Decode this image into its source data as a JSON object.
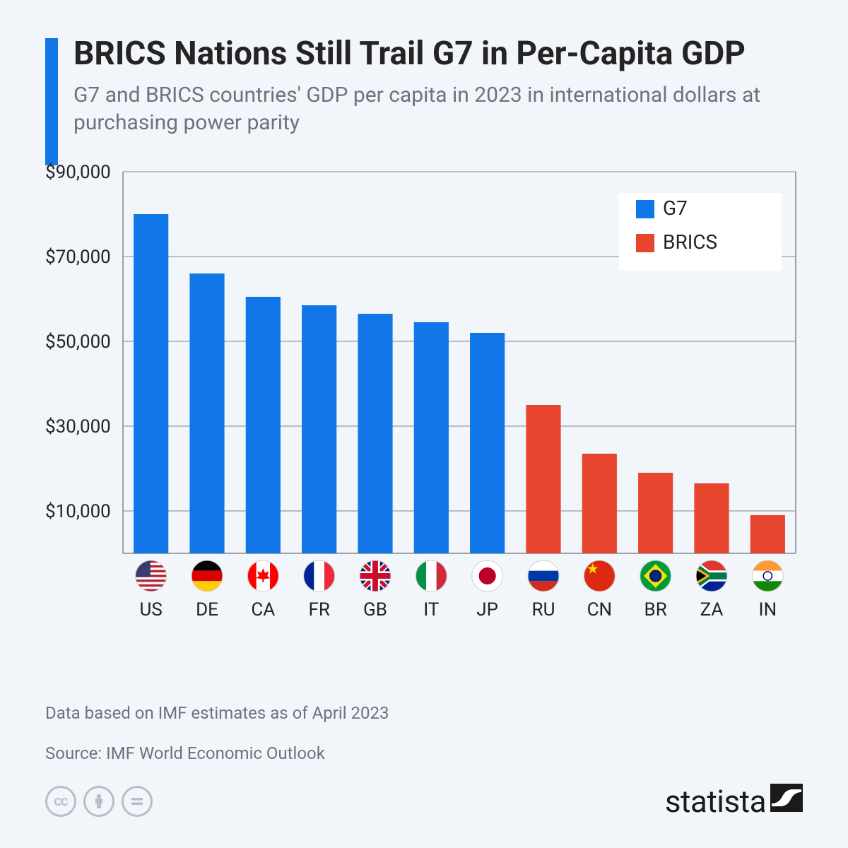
{
  "header": {
    "title": "BRICS Nations Still Trail G7 in Per-Capita GDP",
    "subtitle": "G7 and BRICS countries' GDP per capita in 2023 in international dollars at purchasing power parity",
    "bar_color": "#1176e8"
  },
  "chart": {
    "type": "bar",
    "ylim": [
      0,
      90000
    ],
    "ytick_step": 20000,
    "ytick_labels": [
      "$10,000",
      "$30,000",
      "$50,000",
      "$70,000",
      "$90,000"
    ],
    "ytick_values": [
      10000,
      30000,
      50000,
      70000,
      90000
    ],
    "grid_color": "#7f8896",
    "axis_color": "#7f8896",
    "background_color": "#f2f5f9",
    "bar_width": 0.62,
    "countries": [
      {
        "code": "US",
        "value": 80000,
        "group": "G7",
        "flag": "us"
      },
      {
        "code": "DE",
        "value": 66000,
        "group": "G7",
        "flag": "de"
      },
      {
        "code": "CA",
        "value": 60500,
        "group": "G7",
        "flag": "ca"
      },
      {
        "code": "FR",
        "value": 58500,
        "group": "G7",
        "flag": "fr"
      },
      {
        "code": "GB",
        "value": 56500,
        "group": "G7",
        "flag": "gb"
      },
      {
        "code": "IT",
        "value": 54500,
        "group": "G7",
        "flag": "it"
      },
      {
        "code": "JP",
        "value": 52000,
        "group": "G7",
        "flag": "jp"
      },
      {
        "code": "RU",
        "value": 35000,
        "group": "BRICS",
        "flag": "ru"
      },
      {
        "code": "CN",
        "value": 23500,
        "group": "BRICS",
        "flag": "cn"
      },
      {
        "code": "BR",
        "value": 19000,
        "group": "BRICS",
        "flag": "br"
      },
      {
        "code": "ZA",
        "value": 16500,
        "group": "BRICS",
        "flag": "za"
      },
      {
        "code": "IN",
        "value": 9000,
        "group": "BRICS",
        "flag": "in"
      }
    ],
    "groups": {
      "G7": {
        "label": "G7",
        "color": "#1176e8"
      },
      "BRICS": {
        "label": "BRICS",
        "color": "#e8452f"
      }
    },
    "legend": {
      "position": "top-right",
      "background": "#ffffff"
    }
  },
  "footer": {
    "note": "Data based on IMF estimates as of April 2023",
    "source": "Source: IMF World Economic Outlook",
    "license_icons": [
      "cc",
      "by",
      "nd"
    ],
    "logo_text": "statista"
  }
}
